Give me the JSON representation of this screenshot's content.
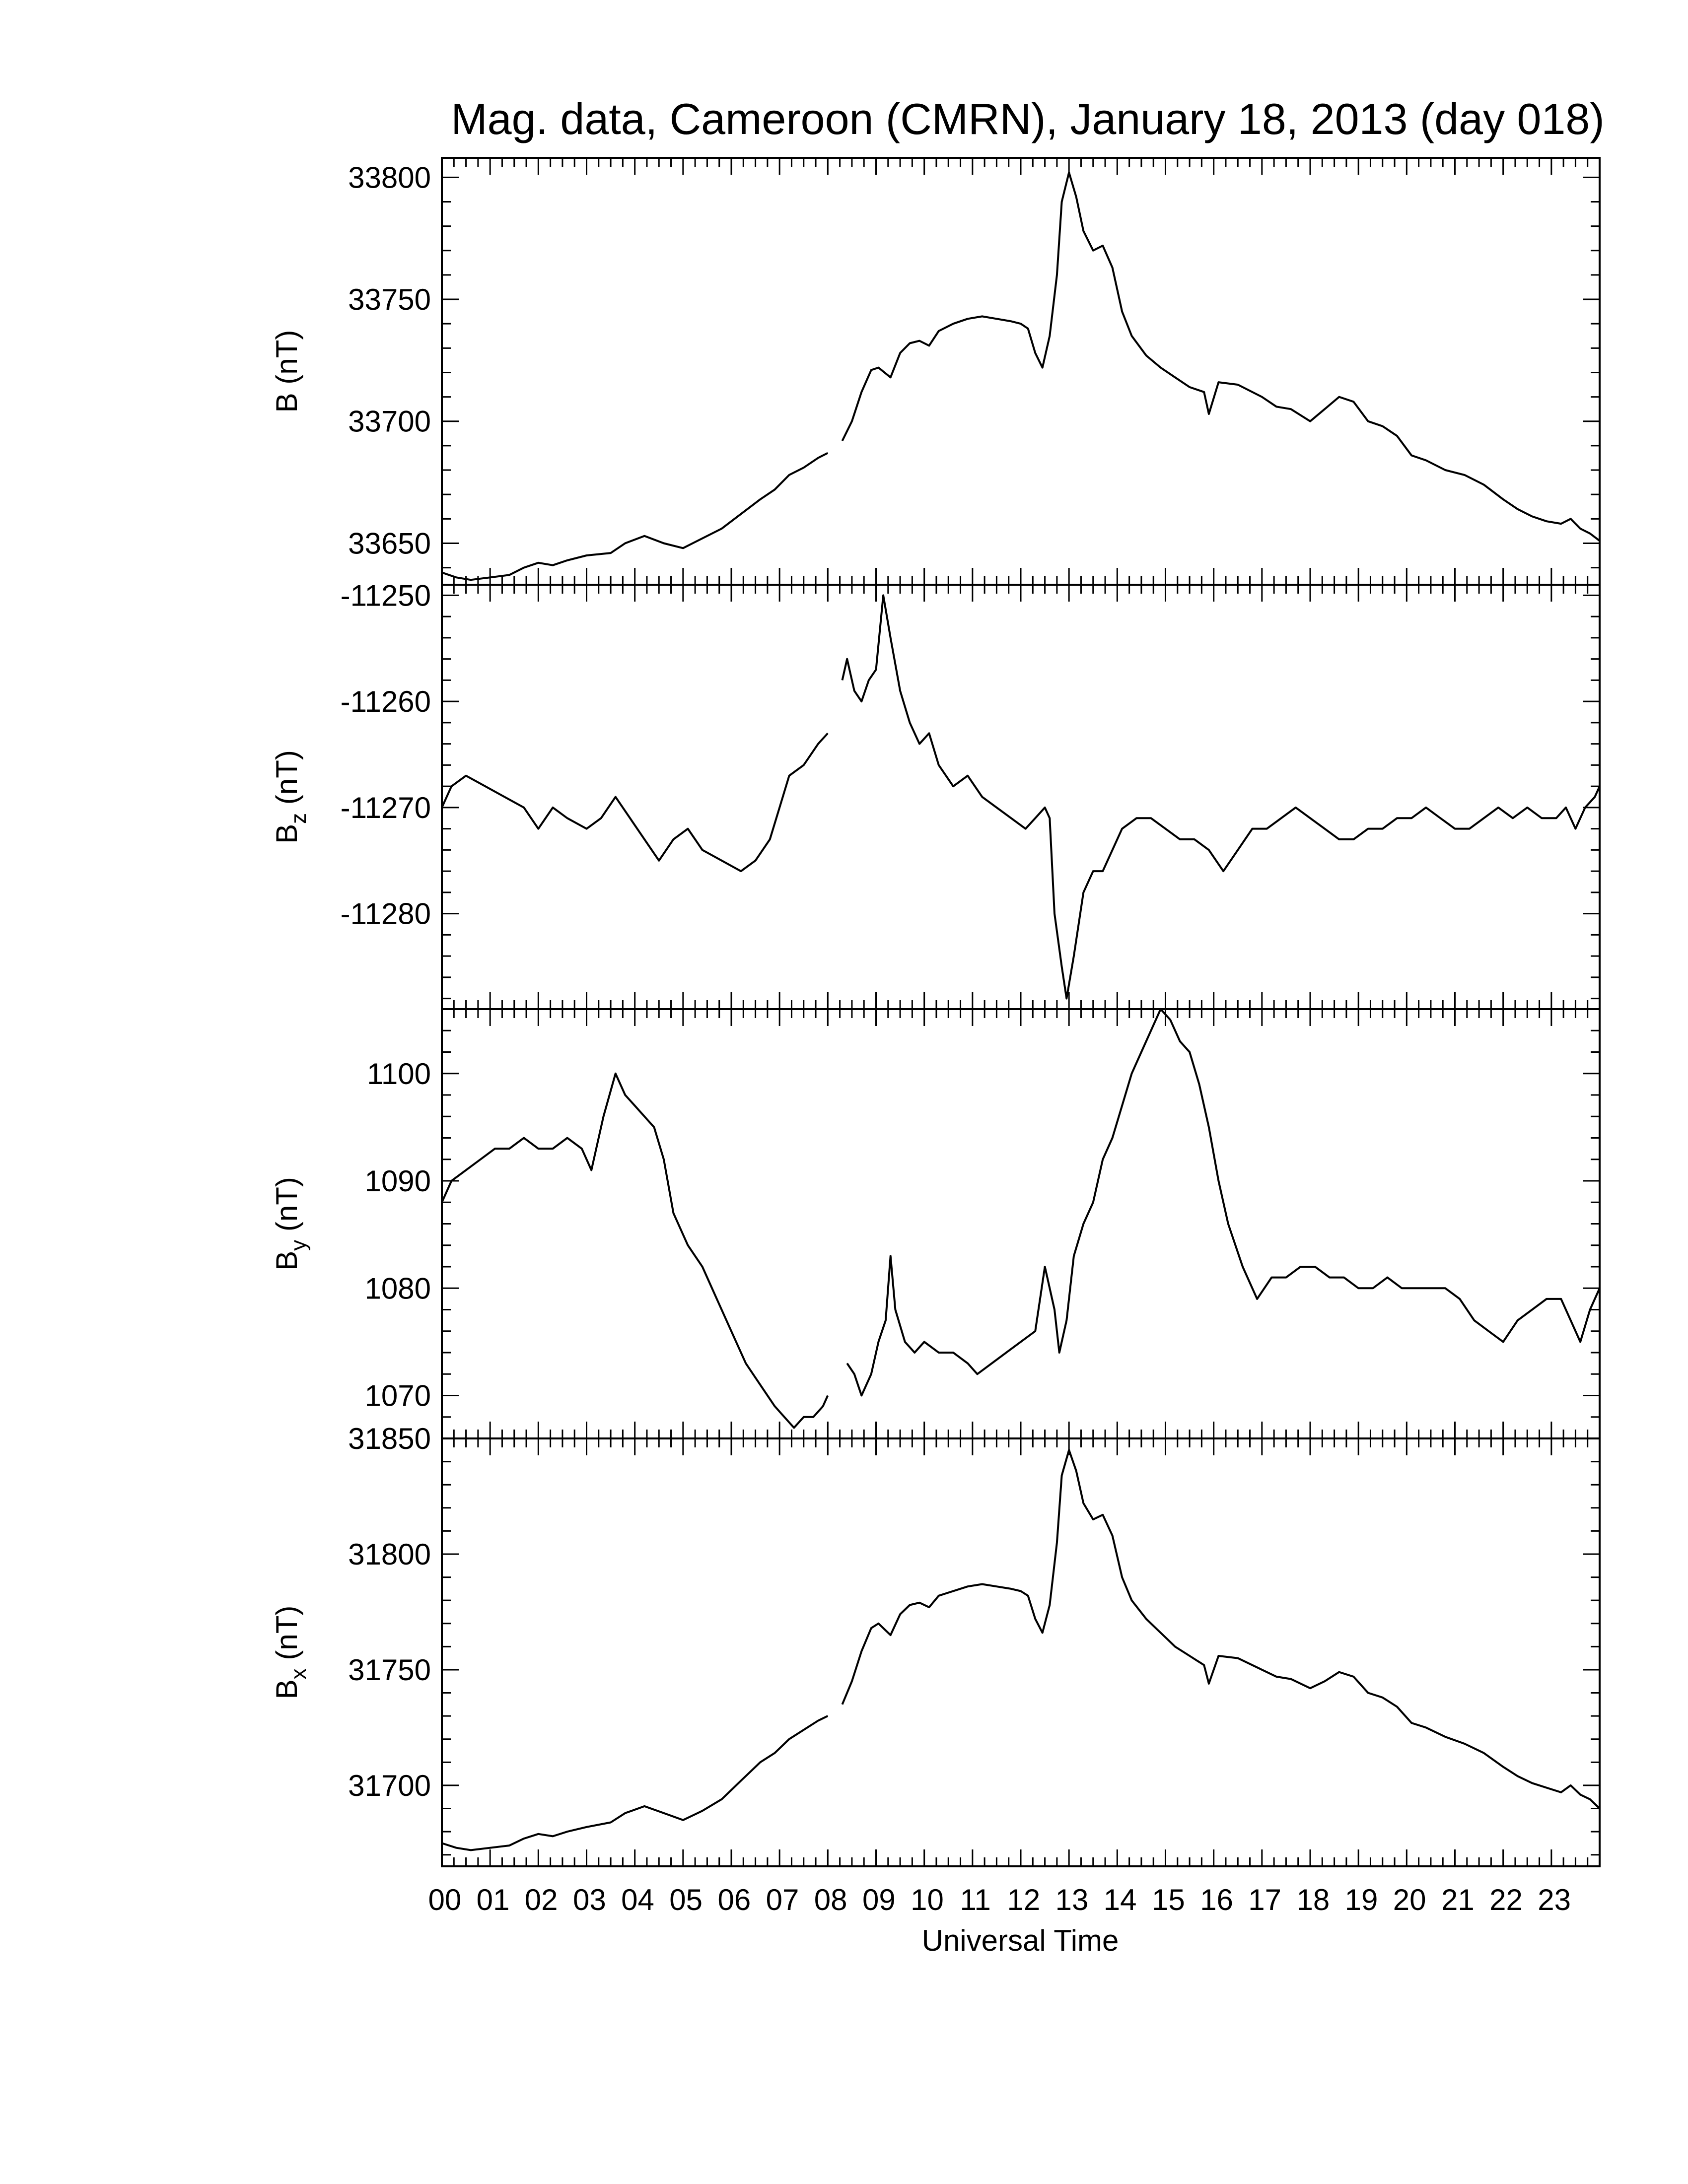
{
  "title": "Mag. data, Cameroon (CMRN), January 18, 2013 (day 018)",
  "xlabel": "Universal Time",
  "x_tick_labels": [
    "00",
    "01",
    "02",
    "03",
    "04",
    "05",
    "06",
    "07",
    "08",
    "09",
    "10",
    "11",
    "12",
    "13",
    "14",
    "15",
    "16",
    "17",
    "18",
    "19",
    "20",
    "21",
    "22",
    "23"
  ],
  "line_color": "#000000",
  "chart_data": [
    {
      "type": "line",
      "ylabel_main": "B",
      "ylabel_sub": "",
      "ylabel_unit": "(nT)",
      "xlim": [
        0,
        24
      ],
      "ylim": [
        33633,
        33808
      ],
      "yticks": [
        33650,
        33700,
        33750,
        33800
      ],
      "series": [
        {
          "x": [
            0,
            0.3,
            0.6,
            1.0,
            1.4,
            1.7,
            2.0,
            2.3,
            2.6,
            3.0,
            3.5,
            3.8,
            4.2,
            4.6,
            5.0,
            5.4,
            5.8,
            6.2,
            6.6,
            6.9,
            7.2,
            7.5,
            7.8,
            8.0,
            null,
            8.3,
            8.5,
            8.7,
            8.9,
            9.05,
            9.3,
            9.5,
            9.7,
            9.9,
            10.1,
            10.3,
            10.6,
            10.9,
            11.2,
            11.5,
            11.8,
            12.0,
            12.15,
            12.3,
            12.45,
            12.6,
            12.75,
            12.85,
            13.0,
            13.15,
            13.3,
            13.5,
            13.7,
            13.9,
            14.1,
            14.3,
            14.6,
            14.9,
            15.2,
            15.5,
            15.8,
            15.9,
            16.1,
            16.5,
            17.0,
            17.3,
            17.6,
            18.0,
            18.3,
            18.6,
            18.9,
            19.2,
            19.5,
            19.8,
            20.1,
            20.4,
            20.8,
            21.2,
            21.6,
            22.0,
            22.3,
            22.6,
            22.9,
            23.2,
            23.4,
            23.6,
            23.8,
            24.0
          ],
          "y": [
            33638,
            33636,
            33635,
            33636,
            33637,
            33640,
            33642,
            33641,
            33643,
            33645,
            33646,
            33650,
            33653,
            33650,
            33648,
            33652,
            33656,
            33662,
            33668,
            33672,
            33678,
            33681,
            33685,
            33687,
            null,
            33692,
            33700,
            33712,
            33721,
            33722,
            33718,
            33728,
            33732,
            33733,
            33731,
            33737,
            33740,
            33742,
            33743,
            33742,
            33741,
            33740,
            33738,
            33728,
            33722,
            33735,
            33760,
            33790,
            33802,
            33792,
            33778,
            33770,
            33772,
            33763,
            33745,
            33735,
            33727,
            33722,
            33718,
            33714,
            33712,
            33703,
            33716,
            33715,
            33710,
            33706,
            33705,
            33700,
            33705,
            33710,
            33708,
            33700,
            33698,
            33694,
            33686,
            33684,
            33680,
            33678,
            33674,
            33668,
            33664,
            33661,
            33659,
            33658,
            33660,
            33656,
            33654,
            33651
          ]
        }
      ]
    },
    {
      "type": "line",
      "ylabel_main": "B",
      "ylabel_sub": "z",
      "ylabel_unit": "(nT)",
      "xlim": [
        0,
        24
      ],
      "ylim": [
        -11289,
        -11249
      ],
      "yticks": [
        -11250,
        -11260,
        -11270,
        -11280
      ],
      "series": [
        {
          "x": [
            0,
            0.2,
            0.5,
            0.9,
            1.3,
            1.7,
            2.0,
            2.3,
            2.6,
            3.0,
            3.3,
            3.6,
            3.9,
            4.2,
            4.5,
            4.8,
            5.1,
            5.4,
            5.8,
            6.2,
            6.5,
            6.8,
            7.0,
            7.2,
            7.5,
            7.8,
            8.0,
            null,
            8.3,
            8.4,
            8.55,
            8.7,
            8.85,
            9.0,
            9.15,
            9.3,
            9.5,
            9.7,
            9.9,
            10.1,
            10.3,
            10.6,
            10.9,
            11.2,
            11.5,
            11.8,
            12.1,
            12.3,
            12.5,
            12.6,
            12.7,
            12.85,
            12.95,
            13.1,
            13.3,
            13.5,
            13.7,
            13.9,
            14.1,
            14.4,
            14.7,
            15.0,
            15.3,
            15.6,
            15.9,
            16.2,
            16.5,
            16.8,
            17.1,
            17.4,
            17.7,
            18.0,
            18.3,
            18.6,
            18.9,
            19.2,
            19.5,
            19.8,
            20.1,
            20.4,
            20.7,
            21.0,
            21.3,
            21.6,
            21.9,
            22.2,
            22.5,
            22.8,
            23.1,
            23.3,
            23.5,
            23.7,
            23.9,
            24.0
          ],
          "y": [
            -11270,
            -11268,
            -11267,
            -11268,
            -11269,
            -11270,
            -11272,
            -11270,
            -11271,
            -11272,
            -11271,
            -11269,
            -11271,
            -11273,
            -11275,
            -11273,
            -11272,
            -11274,
            -11275,
            -11276,
            -11275,
            -11273,
            -11270,
            -11267,
            -11266,
            -11264,
            -11263,
            null,
            -11258,
            -11256,
            -11259,
            -11260,
            -11258,
            -11257,
            -11250,
            -11254,
            -11259,
            -11262,
            -11264,
            -11263,
            -11266,
            -11268,
            -11267,
            -11269,
            -11270,
            -11271,
            -11272,
            -11271,
            -11270,
            -11271,
            -11280,
            -11285,
            -11288,
            -11284,
            -11278,
            -11276,
            -11276,
            -11274,
            -11272,
            -11271,
            -11271,
            -11272,
            -11273,
            -11273,
            -11274,
            -11276,
            -11274,
            -11272,
            -11272,
            -11271,
            -11270,
            -11271,
            -11272,
            -11273,
            -11273,
            -11272,
            -11272,
            -11271,
            -11271,
            -11270,
            -11271,
            -11272,
            -11272,
            -11271,
            -11270,
            -11271,
            -11270,
            -11271,
            -11271,
            -11270,
            -11272,
            -11270,
            -11269,
            -11268
          ]
        }
      ]
    },
    {
      "type": "line",
      "ylabel_main": "B",
      "ylabel_sub": "y",
      "ylabel_unit": "(nT)",
      "xlim": [
        0,
        24
      ],
      "ylim": [
        1066,
        1106
      ],
      "yticks": [
        1070,
        1080,
        1090,
        1100
      ],
      "series": [
        {
          "x": [
            0,
            0.2,
            0.5,
            0.8,
            1.1,
            1.4,
            1.7,
            2.0,
            2.3,
            2.6,
            2.9,
            3.1,
            3.35,
            3.6,
            3.8,
            4.0,
            4.2,
            4.4,
            4.6,
            4.8,
            5.1,
            5.4,
            5.7,
            6.0,
            6.3,
            6.6,
            6.9,
            7.1,
            7.3,
            7.5,
            7.7,
            7.9,
            8.0,
            null,
            8.4,
            8.55,
            8.7,
            8.9,
            9.05,
            9.2,
            9.3,
            9.4,
            9.6,
            9.8,
            10.0,
            10.3,
            10.6,
            10.9,
            11.1,
            11.4,
            11.7,
            12.0,
            12.3,
            12.5,
            12.7,
            12.8,
            12.95,
            13.1,
            13.3,
            13.5,
            13.7,
            13.9,
            14.1,
            14.3,
            14.5,
            14.7,
            14.9,
            15.1,
            15.3,
            15.5,
            15.7,
            15.9,
            16.1,
            16.3,
            16.6,
            16.9,
            17.2,
            17.5,
            17.8,
            18.1,
            18.4,
            18.7,
            19.0,
            19.3,
            19.6,
            19.9,
            20.2,
            20.5,
            20.8,
            21.1,
            21.4,
            21.7,
            22.0,
            22.3,
            22.6,
            22.9,
            23.2,
            23.4,
            23.6,
            23.8,
            24.0
          ],
          "y": [
            1088,
            1090,
            1091,
            1092,
            1093,
            1093,
            1094,
            1093,
            1093,
            1094,
            1093,
            1091,
            1096,
            1100,
            1098,
            1097,
            1096,
            1095,
            1092,
            1087,
            1084,
            1082,
            1079,
            1076,
            1073,
            1071,
            1069,
            1068,
            1067,
            1068,
            1068,
            1069,
            1070,
            null,
            1073,
            1072,
            1070,
            1072,
            1075,
            1077,
            1083,
            1078,
            1075,
            1074,
            1075,
            1074,
            1074,
            1073,
            1072,
            1073,
            1074,
            1075,
            1076,
            1082,
            1078,
            1074,
            1077,
            1083,
            1086,
            1088,
            1092,
            1094,
            1097,
            1100,
            1102,
            1104,
            1106,
            1105,
            1103,
            1102,
            1099,
            1095,
            1090,
            1086,
            1082,
            1079,
            1081,
            1081,
            1082,
            1082,
            1081,
            1081,
            1080,
            1080,
            1081,
            1080,
            1080,
            1080,
            1080,
            1079,
            1077,
            1076,
            1075,
            1077,
            1078,
            1079,
            1079,
            1077,
            1075,
            1078,
            1080
          ]
        }
      ]
    },
    {
      "type": "line",
      "ylabel_main": "B",
      "ylabel_sub": "x",
      "ylabel_unit": "(nT)",
      "xlim": [
        0,
        24
      ],
      "ylim": [
        31665,
        31850
      ],
      "yticks": [
        31700,
        31750,
        31800,
        31850
      ],
      "series": [
        {
          "x": [
            0,
            0.3,
            0.6,
            1.0,
            1.4,
            1.7,
            2.0,
            2.3,
            2.6,
            3.0,
            3.5,
            3.8,
            4.2,
            4.6,
            5.0,
            5.4,
            5.8,
            6.2,
            6.6,
            6.9,
            7.2,
            7.5,
            7.8,
            8.0,
            null,
            8.3,
            8.5,
            8.7,
            8.9,
            9.05,
            9.3,
            9.5,
            9.7,
            9.9,
            10.1,
            10.3,
            10.6,
            10.9,
            11.2,
            11.5,
            11.8,
            12.0,
            12.15,
            12.3,
            12.45,
            12.6,
            12.75,
            12.85,
            13.0,
            13.15,
            13.3,
            13.5,
            13.7,
            13.9,
            14.1,
            14.3,
            14.6,
            14.9,
            15.2,
            15.5,
            15.8,
            15.9,
            16.1,
            16.5,
            17.0,
            17.3,
            17.6,
            18.0,
            18.3,
            18.6,
            18.9,
            19.2,
            19.5,
            19.8,
            20.1,
            20.4,
            20.8,
            21.2,
            21.6,
            22.0,
            22.3,
            22.6,
            22.9,
            23.2,
            23.4,
            23.6,
            23.8,
            24.0
          ],
          "y": [
            31675,
            31673,
            31672,
            31673,
            31674,
            31677,
            31679,
            31678,
            31680,
            31682,
            31684,
            31688,
            31691,
            31688,
            31685,
            31689,
            31694,
            31702,
            31710,
            31714,
            31720,
            31724,
            31728,
            31730,
            null,
            31735,
            31745,
            31758,
            31768,
            31770,
            31765,
            31774,
            31778,
            31779,
            31777,
            31782,
            31784,
            31786,
            31787,
            31786,
            31785,
            31784,
            31782,
            31772,
            31766,
            31778,
            31805,
            31834,
            31845,
            31836,
            31822,
            31815,
            31817,
            31808,
            31790,
            31780,
            31772,
            31766,
            31760,
            31756,
            31752,
            31744,
            31756,
            31755,
            31750,
            31747,
            31746,
            31742,
            31745,
            31749,
            31747,
            31740,
            31738,
            31734,
            31727,
            31725,
            31721,
            31718,
            31714,
            31708,
            31704,
            31701,
            31699,
            31697,
            31700,
            31696,
            31694,
            31690
          ]
        }
      ]
    }
  ]
}
